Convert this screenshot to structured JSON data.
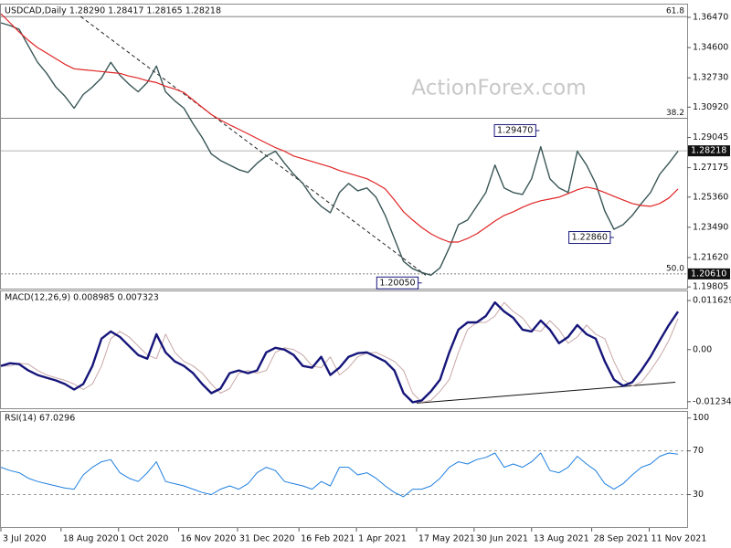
{
  "watermark": "ActionForex.com",
  "chart_data": [
    {
      "type": "line",
      "title": "USDCAD,Daily  1.28290 1.28417 1.28165 1.28218",
      "x": [
        "2020-07-03",
        "2020-07-10",
        "2020-07-17",
        "2020-07-24",
        "2020-07-31",
        "2020-08-07",
        "2020-08-14",
        "2020-08-21",
        "2020-08-28",
        "2020-09-04",
        "2020-09-11",
        "2020-09-18",
        "2020-09-25",
        "2020-10-02",
        "2020-10-09",
        "2020-10-16",
        "2020-10-23",
        "2020-10-30",
        "2020-11-06",
        "2020-11-13",
        "2020-11-20",
        "2020-11-27",
        "2020-12-04",
        "2020-12-11",
        "2020-12-18",
        "2020-12-25",
        "2021-01-01",
        "2021-01-08",
        "2021-01-15",
        "2021-01-22",
        "2021-01-29",
        "2021-02-05",
        "2021-02-12",
        "2021-02-19",
        "2021-02-26",
        "2021-03-05",
        "2021-03-12",
        "2021-03-19",
        "2021-03-26",
        "2021-04-02",
        "2021-04-09",
        "2021-04-16",
        "2021-04-23",
        "2021-04-30",
        "2021-05-07",
        "2021-05-14",
        "2021-05-21",
        "2021-05-28",
        "2021-06-04",
        "2021-06-11",
        "2021-06-18",
        "2021-06-25",
        "2021-07-02",
        "2021-07-09",
        "2021-07-16",
        "2021-07-23",
        "2021-07-30",
        "2021-08-06",
        "2021-08-13",
        "2021-08-20",
        "2021-08-27",
        "2021-09-03",
        "2021-09-10",
        "2021-09-17",
        "2021-09-24",
        "2021-10-01",
        "2021-10-08",
        "2021-10-15",
        "2021-10-22",
        "2021-10-29",
        "2021-11-05",
        "2021-11-12",
        "2021-11-19",
        "2021-11-26",
        "2021-12-03"
      ],
      "xlim": [
        "2020-07-03",
        "2021-12-10"
      ],
      "ylim": [
        1.197,
        1.3726
      ],
      "yticks": [
        {
          "value": 1.3647,
          "label": "1.36470"
        },
        {
          "value": 1.346,
          "label": "1.34600"
        },
        {
          "value": 1.3273,
          "label": "1.32730"
        },
        {
          "value": 1.3092,
          "label": "1.30920"
        },
        {
          "value": 1.29045,
          "label": "1.29045"
        },
        {
          "value": 1.27175,
          "label": "1.27175"
        },
        {
          "value": 1.2536,
          "label": "1.25360"
        },
        {
          "value": 1.2349,
          "label": "1.23490"
        },
        {
          "value": 1.2162,
          "label": "1.21620"
        },
        {
          "value": 1.19805,
          "label": "1.19805"
        }
      ],
      "series": [
        {
          "color": "#3a5656",
          "width": 1.4,
          "values": [
            1.3613,
            1.3596,
            1.3573,
            1.3471,
            1.3369,
            1.3301,
            1.3216,
            1.3159,
            1.3085,
            1.317,
            1.3216,
            1.3272,
            1.3369,
            1.3289,
            1.3233,
            1.3187,
            1.3244,
            1.3346,
            1.3187,
            1.3131,
            1.3085,
            1.2989,
            1.2904,
            1.2802,
            1.2762,
            1.2734,
            1.2705,
            1.2688,
            1.2745,
            1.279,
            1.2819,
            1.2745,
            1.2677,
            1.262,
            1.2535,
            1.2479,
            1.2439,
            1.2564,
            1.262,
            1.2575,
            1.2592,
            1.2535,
            1.2422,
            1.228,
            1.2138,
            1.2093,
            1.207,
            1.2053,
            1.2099,
            1.2223,
            1.2365,
            1.2394,
            1.2479,
            1.2564,
            1.2734,
            1.2592,
            1.2564,
            1.2552,
            1.2649,
            1.2847,
            1.2649,
            1.2592,
            1.2564,
            1.2819,
            1.2734,
            1.262,
            1.245,
            1.2337,
            1.2365,
            1.2422,
            1.2496,
            1.2564,
            1.2677,
            1.2745,
            1.2819
          ]
        },
        {
          "color": "#e02424",
          "width": 1.2,
          "values": [
            1.3669,
            1.3613,
            1.3556,
            1.3505,
            1.346,
            1.3426,
            1.3392,
            1.3357,
            1.3329,
            1.3323,
            1.3318,
            1.3312,
            1.3306,
            1.3301,
            1.3284,
            1.3272,
            1.3255,
            1.3244,
            1.3221,
            1.3204,
            1.3182,
            1.3136,
            1.3091,
            1.3046,
            1.3012,
            1.2983,
            1.2955,
            1.2927,
            1.2898,
            1.287,
            1.2842,
            1.2819,
            1.279,
            1.2773,
            1.2756,
            1.2739,
            1.2722,
            1.27,
            1.2683,
            1.2666,
            1.2649,
            1.262,
            1.2586,
            1.2518,
            1.2445,
            1.2394,
            1.2348,
            1.2309,
            1.228,
            1.2258,
            1.2258,
            1.228,
            1.2309,
            1.2348,
            1.2388,
            1.2422,
            1.2445,
            1.2473,
            1.2496,
            1.2513,
            1.2524,
            1.2535,
            1.2558,
            1.2581,
            1.2598,
            1.2586,
            1.2564,
            1.2541,
            1.2518,
            1.2496,
            1.2484,
            1.2479,
            1.2496,
            1.253,
            1.2586
          ]
        }
      ],
      "fib_levels": [
        {
          "label": "61.8",
          "value": 1.3652
        },
        {
          "label": "38.2",
          "value": 1.3023
        },
        {
          "label": "50.0",
          "value": 1.2061,
          "price_label": "1.20610"
        }
      ],
      "last": {
        "value": 1.28218,
        "label": "1.28218"
      },
      "annotations": [
        {
          "x": "2021-08-19",
          "value": 1.2947,
          "label": "1.29470"
        },
        {
          "x": "2021-10-15",
          "value": 1.2286,
          "label": "1.22860"
        },
        {
          "x": "2021-05-21",
          "value": 1.2005,
          "label": "1.20050"
        }
      ],
      "trendlines": [
        {
          "x": [
            "2020-09-02",
            "2021-05-24"
          ],
          "values": [
            1.3652,
            1.2053
          ],
          "color": "#222222",
          "dashed": true
        }
      ]
    },
    {
      "type": "line",
      "title": "MACD(12,26,9) 0.008985 0.007323",
      "x": [
        "2020-07-03",
        "2020-07-10",
        "2020-07-17",
        "2020-07-24",
        "2020-07-31",
        "2020-08-07",
        "2020-08-14",
        "2020-08-21",
        "2020-08-28",
        "2020-09-04",
        "2020-09-11",
        "2020-09-18",
        "2020-09-25",
        "2020-10-02",
        "2020-10-09",
        "2020-10-16",
        "2020-10-23",
        "2020-10-30",
        "2020-11-06",
        "2020-11-13",
        "2020-11-20",
        "2020-11-27",
        "2020-12-04",
        "2020-12-11",
        "2020-12-18",
        "2020-12-25",
        "2021-01-01",
        "2021-01-08",
        "2021-01-15",
        "2021-01-22",
        "2021-01-29",
        "2021-02-05",
        "2021-02-12",
        "2021-02-19",
        "2021-02-26",
        "2021-03-05",
        "2021-03-12",
        "2021-03-19",
        "2021-03-26",
        "2021-04-02",
        "2021-04-09",
        "2021-04-16",
        "2021-04-23",
        "2021-04-30",
        "2021-05-07",
        "2021-05-14",
        "2021-05-21",
        "2021-05-28",
        "2021-06-04",
        "2021-06-11",
        "2021-06-18",
        "2021-06-25",
        "2021-07-02",
        "2021-07-09",
        "2021-07-16",
        "2021-07-23",
        "2021-07-30",
        "2021-08-06",
        "2021-08-13",
        "2021-08-20",
        "2021-08-27",
        "2021-09-03",
        "2021-09-10",
        "2021-09-17",
        "2021-09-24",
        "2021-10-01",
        "2021-10-08",
        "2021-10-15",
        "2021-10-22",
        "2021-10-29",
        "2021-11-05",
        "2021-11-12",
        "2021-11-19",
        "2021-11-26",
        "2021-12-03"
      ],
      "xlim": [
        "2020-07-03",
        "2021-12-10"
      ],
      "ylim": [
        -0.0139,
        0.0138
      ],
      "yticks": [
        0.011629,
        {
          "value": 0,
          "label": "0.00"
        },
        -0.012348
      ],
      "series": [
        {
          "color": "#c9a7a7",
          "width": 1,
          "values": [
            -0.00387,
            -0.00387,
            -0.00323,
            -0.00344,
            -0.00495,
            -0.00602,
            -0.00667,
            -0.00731,
            -0.00817,
            -0.00946,
            -0.00817,
            -0.00387,
            0.00258,
            0.0043,
            0.00301,
            0.00086,
            -0.00129,
            -0.00215,
            0.00366,
            -0.00065,
            -0.0028,
            -0.00387,
            -0.00559,
            -0.00817,
            -0.01032,
            -0.00925,
            -0.00559,
            -0.00495,
            -0.00559,
            -0.00495,
            -0.00065,
            0.00043,
            0,
            -0.00129,
            -0.00387,
            -0.0043,
            -0.00172,
            -0.00602,
            -0.0043,
            -0.00172,
            -0.00086,
            -0.00065,
            -0.00172,
            -0.0028,
            -0.00495,
            -0.01032,
            -0.01247,
            -0.01204,
            -0.00989,
            -0.0071,
            -0.00065,
            0.00473,
            0.00645,
            0.00645,
            0.00796,
            0.01118,
            0.00903,
            0.00753,
            0.00473,
            0.0043,
            0.00688,
            0.00473,
            0.00151,
            0.00301,
            0.00581,
            0.00366,
            0.00258,
            -0.0028,
            -0.0071,
            -0.0086,
            -0.00774,
            -0.00495,
            -0.00172,
            0.00215,
            0.00732
          ]
        },
        {
          "color": "#16167a",
          "width": 2.4,
          "values": [
            -0.00387,
            -0.00323,
            -0.00344,
            -0.00495,
            -0.00602,
            -0.00667,
            -0.00731,
            -0.00817,
            -0.00946,
            -0.00817,
            -0.00387,
            0.00258,
            0.0043,
            0.00301,
            0.00086,
            -0.00129,
            -0.00215,
            0.00366,
            -0.00065,
            -0.0028,
            -0.00387,
            -0.00559,
            -0.00817,
            -0.01032,
            -0.00925,
            -0.00559,
            -0.00495,
            -0.00559,
            -0.00495,
            -0.00065,
            0.00043,
            0,
            -0.00129,
            -0.00387,
            -0.0043,
            -0.00172,
            -0.00602,
            -0.0043,
            -0.00172,
            -0.00086,
            -0.00065,
            -0.00172,
            -0.0028,
            -0.00495,
            -0.01032,
            -0.01247,
            -0.01204,
            -0.00989,
            -0.0071,
            -0.00065,
            0.00473,
            0.00645,
            0.00645,
            0.00796,
            0.01118,
            0.00903,
            0.00753,
            0.00473,
            0.0043,
            0.00688,
            0.00473,
            0.00151,
            0.00301,
            0.00581,
            0.00366,
            0.00258,
            -0.0028,
            -0.0071,
            -0.0086,
            -0.00774,
            -0.00495,
            -0.00172,
            0.00215,
            0.00581,
            0.00899
          ]
        }
      ],
      "trendlines": [
        {
          "x": [
            "2021-05-17",
            "2021-12-01"
          ],
          "values": [
            -0.01269,
            -0.00774
          ],
          "color": "#111111",
          "dashed": false
        }
      ]
    },
    {
      "type": "line",
      "title": "RSI(14) 67.0296",
      "x": [
        "2020-07-03",
        "2020-07-10",
        "2020-07-17",
        "2020-07-24",
        "2020-07-31",
        "2020-08-07",
        "2020-08-14",
        "2020-08-21",
        "2020-08-28",
        "2020-09-04",
        "2020-09-11",
        "2020-09-18",
        "2020-09-25",
        "2020-10-02",
        "2020-10-09",
        "2020-10-16",
        "2020-10-23",
        "2020-10-30",
        "2020-11-06",
        "2020-11-13",
        "2020-11-20",
        "2020-11-27",
        "2020-12-04",
        "2020-12-11",
        "2020-12-18",
        "2020-12-25",
        "2021-01-01",
        "2021-01-08",
        "2021-01-15",
        "2021-01-22",
        "2021-01-29",
        "2021-02-05",
        "2021-02-12",
        "2021-02-19",
        "2021-02-26",
        "2021-03-05",
        "2021-03-12",
        "2021-03-19",
        "2021-03-26",
        "2021-04-02",
        "2021-04-09",
        "2021-04-16",
        "2021-04-23",
        "2021-04-30",
        "2021-05-07",
        "2021-05-14",
        "2021-05-21",
        "2021-05-28",
        "2021-06-04",
        "2021-06-11",
        "2021-06-18",
        "2021-06-25",
        "2021-07-02",
        "2021-07-09",
        "2021-07-16",
        "2021-07-23",
        "2021-07-30",
        "2021-08-06",
        "2021-08-13",
        "2021-08-20",
        "2021-08-27",
        "2021-09-03",
        "2021-09-10",
        "2021-09-17",
        "2021-09-24",
        "2021-10-01",
        "2021-10-08",
        "2021-10-15",
        "2021-10-22",
        "2021-10-29",
        "2021-11-05",
        "2021-11-12",
        "2021-11-19",
        "2021-11-26",
        "2021-12-03"
      ],
      "xlim": [
        "2020-07-03",
        "2021-12-10"
      ],
      "ylim": [
        0.4,
        105.6
      ],
      "yticks": [
        100,
        70,
        30
      ],
      "levels": [
        70,
        30
      ],
      "xticks": [
        {
          "value": "2020-07-03",
          "label": "3 Jul 2020"
        },
        {
          "value": "2020-08-18",
          "label": "18 Aug 2020"
        },
        {
          "value": "2020-10-01",
          "label": "1 Oct 2020"
        },
        {
          "value": "2020-11-16",
          "label": "16 Nov 2020"
        },
        {
          "value": "2020-12-31",
          "label": "31 Dec 2020"
        },
        {
          "value": "2021-02-16",
          "label": "16 Feb 2021"
        },
        {
          "value": "2021-04-01",
          "label": "1 Apr 2021"
        },
        {
          "value": "2021-05-17",
          "label": "17 May 2021"
        },
        {
          "value": "2021-06-30",
          "label": "30 Jun 2021"
        },
        {
          "value": "2021-08-13",
          "label": "13 Aug 2021"
        },
        {
          "value": "2021-09-28",
          "label": "28 Sep 2021"
        },
        {
          "value": "2021-11-11",
          "label": "11 Nov 2021"
        }
      ],
      "series": [
        {
          "color": "#1e7fe0",
          "width": 1,
          "values": [
            55,
            52,
            50,
            45,
            42,
            40,
            38,
            36,
            35,
            48,
            55,
            60,
            62,
            50,
            45,
            42,
            50,
            60,
            42,
            40,
            38,
            35,
            32,
            30,
            35,
            38,
            35,
            40,
            50,
            55,
            52,
            42,
            40,
            38,
            35,
            42,
            38,
            55,
            55,
            48,
            50,
            45,
            38,
            32,
            28,
            35,
            35,
            38,
            45,
            55,
            60,
            58,
            62,
            64,
            68,
            55,
            58,
            55,
            60,
            68,
            52,
            50,
            55,
            65,
            58,
            52,
            40,
            35,
            40,
            48,
            55,
            58,
            65,
            68,
            67.03
          ]
        }
      ]
    }
  ]
}
